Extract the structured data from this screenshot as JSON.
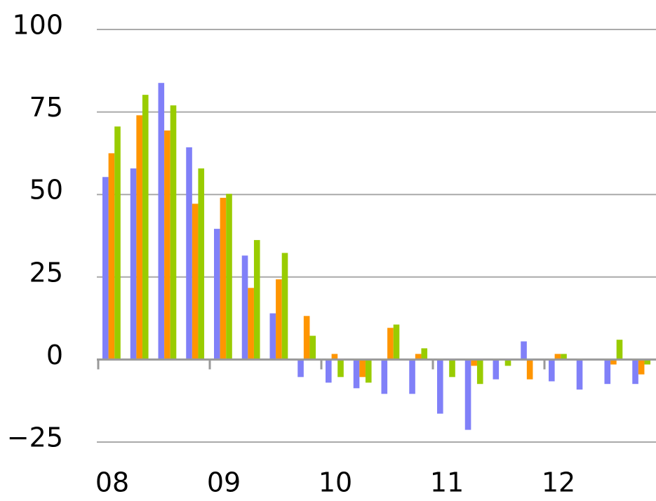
{
  "chart_data": {
    "type": "bar",
    "categories": [
      "08",
      null,
      null,
      null,
      "09",
      null,
      null,
      null,
      "10",
      null,
      null,
      null,
      "11",
      null,
      null,
      null,
      "12",
      null,
      null,
      null
    ],
    "series": [
      {
        "color": "#8080f8",
        "values": [
          55.3,
          57.9,
          83.8,
          64.3,
          39.6,
          31.5,
          14,
          -5.3,
          -7,
          -8.7,
          -10.4,
          -10.4,
          -16.4,
          -21.3,
          -6,
          5.5,
          -6.6,
          -9.1,
          -7.4,
          -7.4
        ]
      },
      {
        "color": "#ff9500",
        "values": [
          62.5,
          74,
          69.4,
          47.2,
          49,
          21.7,
          24.3,
          13.2,
          1.7,
          -5.3,
          9.6,
          1.7,
          0,
          -1.9,
          0,
          -6,
          1.7,
          0,
          -1.5,
          -4.5
        ]
      },
      {
        "color": "#99cc00",
        "values": [
          70.6,
          80.2,
          77,
          57.9,
          50.2,
          36.2,
          32.3,
          7.2,
          -5.3,
          -7,
          10.6,
          3.4,
          -5.3,
          -7.4,
          -1.9,
          0,
          1.7,
          0,
          6,
          -1.5
        ]
      }
    ],
    "ylim": [
      -25,
      100
    ],
    "yticks": [
      {
        "value": -25,
        "label": "−25"
      },
      0,
      25,
      50,
      75,
      100
    ],
    "grid": true
  }
}
